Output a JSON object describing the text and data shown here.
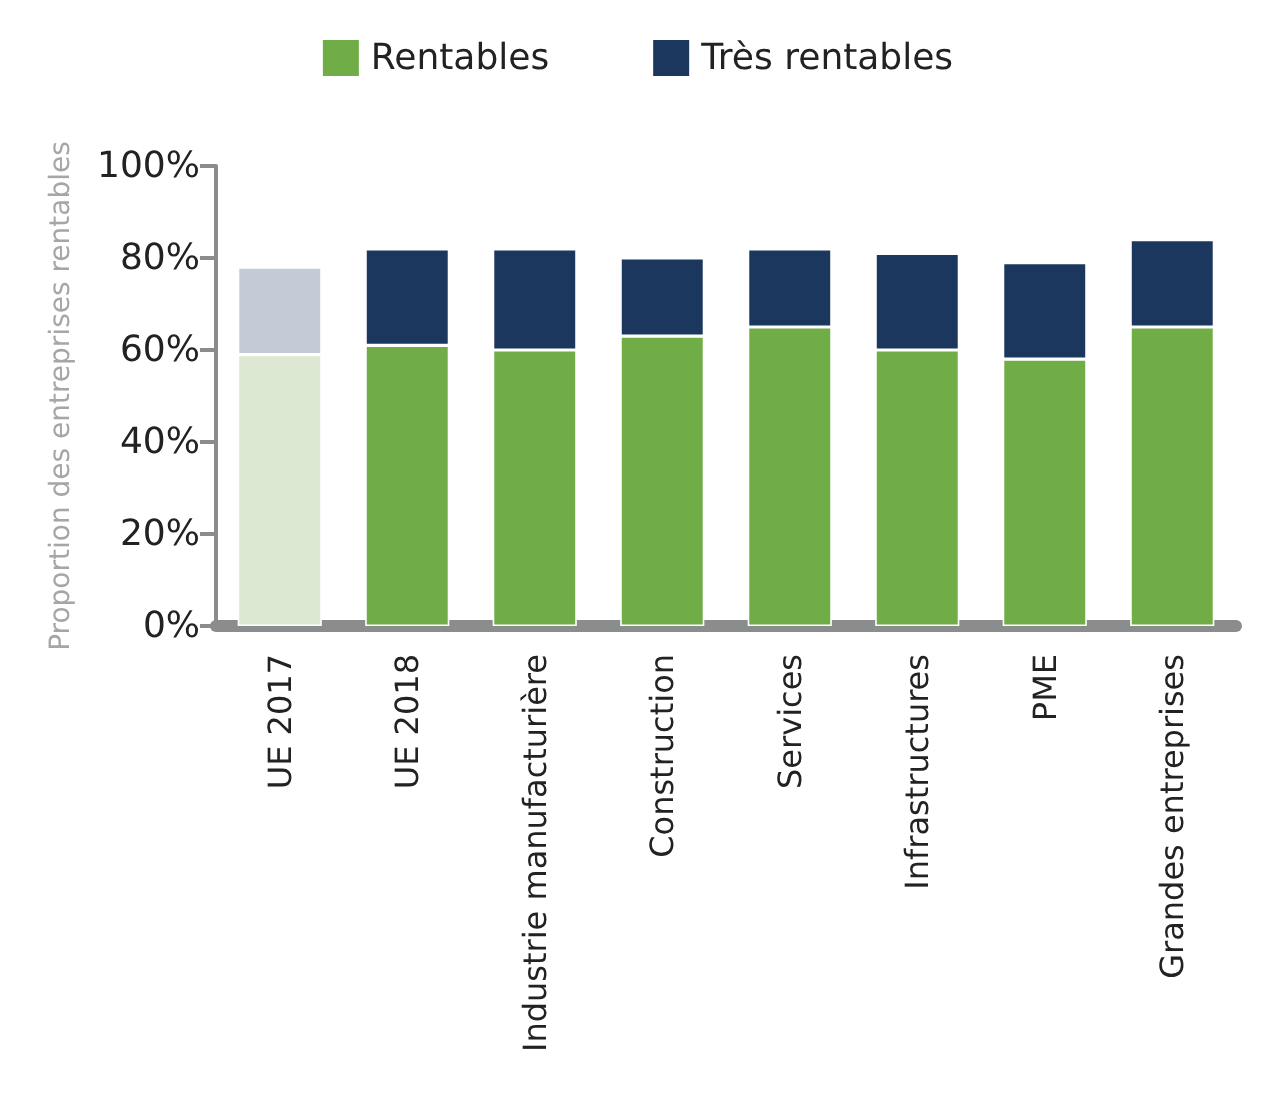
{
  "chart_data": {
    "type": "bar",
    "stacked": true,
    "ylabel": "Proportion des entreprises rentables",
    "categories": [
      "UE 2017",
      "UE 2018",
      "Industrie manufacturière",
      "Construction",
      "Services",
      "Infrastructures",
      "PME",
      "Grandes entreprises"
    ],
    "series": [
      {
        "name": "Rentables",
        "color": "#70ad47",
        "colors": [
          "#dce8d2",
          "#70ad47",
          "#70ad47",
          "#70ad47",
          "#70ad47",
          "#70ad47",
          "#70ad47",
          "#70ad47"
        ],
        "values": [
          59,
          61,
          60,
          63,
          65,
          60,
          58,
          65
        ]
      },
      {
        "name": "Très rentables",
        "color": "#1b375e",
        "colors": [
          "#c3ccd6",
          "#1b375e",
          "#1b375e",
          "#1b375e",
          "#1b375e",
          "#1b375e",
          "#1b375e",
          "#1b375e"
        ],
        "values": [
          19,
          21,
          22,
          17,
          17,
          21,
          21,
          19
        ]
      }
    ],
    "ylim": [
      0,
      100
    ],
    "yticks": [
      {
        "value": 0,
        "label": "0%"
      },
      {
        "value": 20,
        "label": "20%"
      },
      {
        "value": 40,
        "label": "40%"
      },
      {
        "value": 60,
        "label": "60%"
      },
      {
        "value": 80,
        "label": "80%"
      },
      {
        "value": 100,
        "label": "100%"
      }
    ],
    "grid": false,
    "legend": "top"
  }
}
